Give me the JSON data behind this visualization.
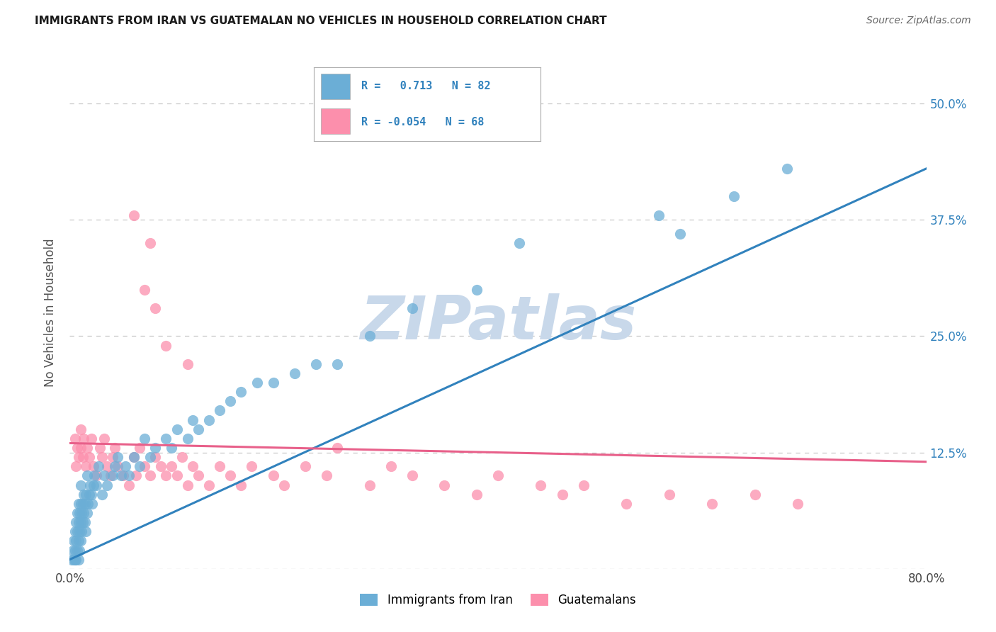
{
  "title": "IMMIGRANTS FROM IRAN VS GUATEMALAN NO VEHICLES IN HOUSEHOLD CORRELATION CHART",
  "source": "Source: ZipAtlas.com",
  "ylabel": "No Vehicles in Household",
  "xlim": [
    0.0,
    0.8
  ],
  "ylim": [
    0.0,
    0.55
  ],
  "x_tick_positions": [
    0.0,
    0.1,
    0.2,
    0.3,
    0.4,
    0.5,
    0.6,
    0.7,
    0.8
  ],
  "x_tick_labels": [
    "0.0%",
    "",
    "",
    "",
    "",
    "",
    "",
    "",
    "80.0%"
  ],
  "y_tick_positions": [
    0.0,
    0.125,
    0.25,
    0.375,
    0.5
  ],
  "y_tick_labels": [
    "",
    "12.5%",
    "25.0%",
    "37.5%",
    "50.0%"
  ],
  "legend1_r": "0.713",
  "legend1_n": "82",
  "legend2_r": "-0.054",
  "legend2_n": "68",
  "legend1_label": "Immigrants from Iran",
  "legend2_label": "Guatemalans",
  "blue_color": "#6baed6",
  "pink_color": "#fc8fac",
  "blue_line_color": "#3182bd",
  "pink_line_color": "#e8608a",
  "watermark": "ZIPatlas",
  "watermark_color": "#c8d8ea",
  "blue_line_x0": 0.0,
  "blue_line_y0": 0.01,
  "blue_line_x1": 0.8,
  "blue_line_y1": 0.43,
  "pink_line_x0": 0.0,
  "pink_line_y0": 0.135,
  "pink_line_x1": 0.8,
  "pink_line_y1": 0.115,
  "figsize": [
    14.06,
    8.92
  ],
  "dpi": 100,
  "blue_scatter_x": [
    0.002,
    0.003,
    0.004,
    0.004,
    0.005,
    0.005,
    0.005,
    0.006,
    0.006,
    0.006,
    0.007,
    0.007,
    0.007,
    0.008,
    0.008,
    0.008,
    0.008,
    0.009,
    0.009,
    0.009,
    0.01,
    0.01,
    0.01,
    0.01,
    0.011,
    0.011,
    0.012,
    0.012,
    0.013,
    0.013,
    0.014,
    0.014,
    0.015,
    0.015,
    0.016,
    0.016,
    0.017,
    0.018,
    0.019,
    0.02,
    0.021,
    0.022,
    0.023,
    0.025,
    0.027,
    0.03,
    0.032,
    0.035,
    0.04,
    0.042,
    0.045,
    0.048,
    0.052,
    0.055,
    0.06,
    0.065,
    0.07,
    0.075,
    0.08,
    0.09,
    0.095,
    0.1,
    0.11,
    0.115,
    0.12,
    0.13,
    0.14,
    0.15,
    0.16,
    0.175,
    0.19,
    0.21,
    0.23,
    0.25,
    0.28,
    0.32,
    0.38,
    0.42,
    0.55,
    0.57,
    0.62,
    0.67
  ],
  "blue_scatter_y": [
    0.01,
    0.02,
    0.01,
    0.03,
    0.01,
    0.02,
    0.04,
    0.01,
    0.03,
    0.05,
    0.02,
    0.04,
    0.06,
    0.01,
    0.03,
    0.05,
    0.07,
    0.02,
    0.04,
    0.06,
    0.03,
    0.05,
    0.07,
    0.09,
    0.04,
    0.06,
    0.05,
    0.07,
    0.06,
    0.08,
    0.05,
    0.07,
    0.04,
    0.08,
    0.06,
    0.1,
    0.07,
    0.08,
    0.09,
    0.08,
    0.07,
    0.09,
    0.1,
    0.09,
    0.11,
    0.08,
    0.1,
    0.09,
    0.1,
    0.11,
    0.12,
    0.1,
    0.11,
    0.1,
    0.12,
    0.11,
    0.14,
    0.12,
    0.13,
    0.14,
    0.13,
    0.15,
    0.14,
    0.16,
    0.15,
    0.16,
    0.17,
    0.18,
    0.19,
    0.2,
    0.2,
    0.21,
    0.22,
    0.22,
    0.25,
    0.28,
    0.3,
    0.35,
    0.38,
    0.36,
    0.4,
    0.43
  ],
  "pink_scatter_x": [
    0.005,
    0.006,
    0.007,
    0.008,
    0.01,
    0.01,
    0.012,
    0.013,
    0.015,
    0.016,
    0.018,
    0.02,
    0.022,
    0.025,
    0.028,
    0.03,
    0.032,
    0.035,
    0.038,
    0.04,
    0.042,
    0.045,
    0.05,
    0.055,
    0.06,
    0.062,
    0.065,
    0.07,
    0.075,
    0.08,
    0.085,
    0.09,
    0.095,
    0.1,
    0.105,
    0.11,
    0.115,
    0.12,
    0.13,
    0.14,
    0.15,
    0.16,
    0.17,
    0.19,
    0.2,
    0.22,
    0.24,
    0.25,
    0.28,
    0.3,
    0.32,
    0.35,
    0.38,
    0.4,
    0.44,
    0.46,
    0.48,
    0.52,
    0.56,
    0.6,
    0.64,
    0.68,
    0.06,
    0.075,
    0.07,
    0.08,
    0.09,
    0.11
  ],
  "pink_scatter_y": [
    0.14,
    0.11,
    0.13,
    0.12,
    0.15,
    0.13,
    0.12,
    0.14,
    0.11,
    0.13,
    0.12,
    0.14,
    0.11,
    0.1,
    0.13,
    0.12,
    0.14,
    0.11,
    0.1,
    0.12,
    0.13,
    0.11,
    0.1,
    0.09,
    0.12,
    0.1,
    0.13,
    0.11,
    0.1,
    0.12,
    0.11,
    0.1,
    0.11,
    0.1,
    0.12,
    0.09,
    0.11,
    0.1,
    0.09,
    0.11,
    0.1,
    0.09,
    0.11,
    0.1,
    0.09,
    0.11,
    0.1,
    0.13,
    0.09,
    0.11,
    0.1,
    0.09,
    0.08,
    0.1,
    0.09,
    0.08,
    0.09,
    0.07,
    0.08,
    0.07,
    0.08,
    0.07,
    0.38,
    0.35,
    0.3,
    0.28,
    0.24,
    0.22
  ]
}
